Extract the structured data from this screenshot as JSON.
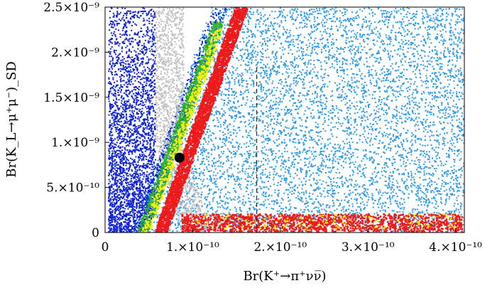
{
  "chart_data": {
    "type": "scatter",
    "xlabel": "Br(K⁺→π⁺νν̅)",
    "ylabel": "Br(K_L→μ⁺μ⁻)_SD",
    "xlim": [
      0,
      4.1e-10
    ],
    "ylim": [
      0,
      2.5e-09
    ],
    "x_ticks": [
      {
        "value": 0,
        "label": "0"
      },
      {
        "value": 1e-10,
        "label": "1.×10⁻¹⁰"
      },
      {
        "value": 2e-10,
        "label": "2.×10⁻¹⁰"
      },
      {
        "value": 3e-10,
        "label": "3.×10⁻¹⁰"
      },
      {
        "value": 4e-10,
        "label": "4.×10⁻¹⁰"
      }
    ],
    "y_ticks": [
      {
        "value": 0,
        "label": "0"
      },
      {
        "value": 5e-10,
        "label": "5.×10⁻¹⁰"
      },
      {
        "value": 1e-09,
        "label": "1.×10⁻⁹"
      },
      {
        "value": 1.5e-09,
        "label": "1.5×10⁻⁹"
      },
      {
        "value": 2e-09,
        "label": "2.×10⁻⁹"
      },
      {
        "value": 2.5e-09,
        "label": "2.5×10⁻⁹"
      }
    ],
    "grid": false,
    "reference_line": {
      "x": 1.73e-10,
      "style": "dashed",
      "color": "#333333"
    },
    "highlight_point": {
      "x": 8.5e-11,
      "y": 8.3e-10,
      "color": "#000000"
    },
    "scan_regions": [
      {
        "color": "#0a1fd6"
      },
      {
        "color": "#2b9be8"
      },
      {
        "color": "#c0c0c0"
      },
      {
        "color": "#2fb52a"
      },
      {
        "color": "#f2f20a"
      },
      {
        "color": "#ee1a1a"
      }
    ]
  }
}
